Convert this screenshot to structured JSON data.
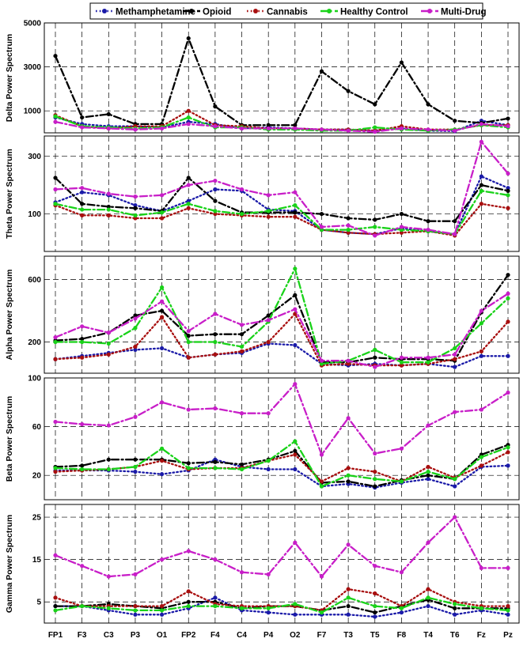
{
  "chart_data": {
    "type": "line",
    "legend": {
      "placement": "top",
      "entries": [
        {
          "name": "Methamphetamine",
          "color": "#1a1aa8",
          "dash": "dotted"
        },
        {
          "name": "Opioid",
          "color": "#000000",
          "dash": "dash-dot"
        },
        {
          "name": "Cannabis",
          "color": "#a80f0f",
          "dash": "dotted"
        },
        {
          "name": "Healthy Control",
          "color": "#19d219",
          "dash": "dash-dot"
        },
        {
          "name": "Multi-Drug",
          "color": "#c81ec8",
          "dash": "dash-dot"
        }
      ]
    },
    "categories": [
      "FP1",
      "F3",
      "C3",
      "P3",
      "O1",
      "FP2",
      "F4",
      "C4",
      "P4",
      "O2",
      "F7",
      "T3",
      "T5",
      "F8",
      "T4",
      "T6",
      "Fz",
      "Pz"
    ],
    "panels": [
      {
        "ylabel": "Delta Power Spectrum",
        "ylim": [
          0,
          5000
        ],
        "yticks": [
          1000,
          3000,
          5000
        ],
        "grid": true,
        "series": [
          {
            "name": "Methamphetamine",
            "values": [
              700,
              400,
              300,
              300,
              250,
              500,
              400,
              200,
              250,
              200,
              150,
              150,
              100,
              200,
              100,
              80,
              550,
              350
            ]
          },
          {
            "name": "Opioid",
            "values": [
              3500,
              700,
              850,
              400,
              400,
              4300,
              1200,
              350,
              350,
              350,
              2800,
              1900,
              1300,
              3200,
              1300,
              550,
              450,
              650
            ]
          },
          {
            "name": "Cannabis",
            "values": [
              800,
              300,
              200,
              300,
              300,
              1000,
              350,
              300,
              200,
              200,
              150,
              150,
              100,
              300,
              150,
              150,
              350,
              350
            ]
          },
          {
            "name": "Healthy Control",
            "values": [
              750,
              300,
              250,
              200,
              250,
              700,
              250,
              250,
              150,
              150,
              100,
              100,
              250,
              150,
              100,
              150,
              350,
              250
            ]
          },
          {
            "name": "Multi-Drug",
            "values": [
              500,
              250,
              200,
              150,
              200,
              400,
              300,
              200,
              200,
              200,
              150,
              100,
              50,
              200,
              150,
              100,
              400,
              300
            ]
          }
        ]
      },
      {
        "ylabel": "Theta Power Spectrum",
        "ylim": [
          -30,
          370
        ],
        "yticks": [
          100,
          300
        ],
        "grid": true,
        "series": [
          {
            "name": "Methamphetamine",
            "values": [
              140,
              175,
              165,
              130,
              110,
              145,
              185,
              180,
              115,
              110,
              45,
              35,
              30,
              50,
              40,
              30,
              230,
              190
            ]
          },
          {
            "name": "Opioid",
            "values": [
              225,
              135,
              125,
              120,
              110,
              225,
              145,
              105,
              105,
              105,
              100,
              85,
              80,
              100,
              75,
              75,
              200,
              180
            ]
          },
          {
            "name": "Cannabis",
            "values": [
              130,
              95,
              95,
              85,
              85,
              120,
              100,
              95,
              90,
              90,
              45,
              35,
              30,
              35,
              40,
              25,
              135,
              120
            ]
          },
          {
            "name": "Healthy Control",
            "values": [
              135,
              115,
              115,
              95,
              105,
              135,
              110,
              100,
              110,
              130,
              45,
              45,
              55,
              45,
              40,
              30,
              180,
              165
            ]
          },
          {
            "name": "Multi-Drug",
            "values": [
              185,
              190,
              170,
              160,
              165,
              200,
              215,
              185,
              165,
              175,
              55,
              60,
              25,
              55,
              45,
              30,
              350,
              240
            ]
          }
        ]
      },
      {
        "ylabel": "Alpha Power Spectrum",
        "ylim": [
          0,
          750
        ],
        "yticks": [
          200,
          600
        ],
        "grid": true,
        "series": [
          {
            "name": "Methamphetamine",
            "values": [
              90,
              110,
              130,
              150,
              160,
              100,
              120,
              130,
              190,
              180,
              60,
              50,
              60,
              50,
              60,
              40,
              110,
              110
            ]
          },
          {
            "name": "Opioid",
            "values": [
              210,
              220,
              260,
              370,
              400,
              240,
              250,
              250,
              370,
              500,
              70,
              70,
              100,
              90,
              90,
              80,
              390,
              630
            ]
          },
          {
            "name": "Cannabis",
            "values": [
              90,
              100,
              120,
              170,
              360,
              100,
              120,
              140,
              200,
              380,
              50,
              60,
              50,
              50,
              60,
              90,
              140,
              330
            ]
          },
          {
            "name": "Healthy Control",
            "values": [
              200,
              200,
              190,
              290,
              550,
              200,
              200,
              170,
              330,
              670,
              60,
              80,
              150,
              70,
              70,
              160,
              320,
              480
            ]
          },
          {
            "name": "Multi-Drug",
            "values": [
              230,
              300,
              260,
              350,
              460,
              270,
              380,
              310,
              340,
              410,
              80,
              80,
              40,
              100,
              100,
              120,
              400,
              510
            ]
          }
        ]
      },
      {
        "ylabel": "Beta Power Spectrum",
        "ylim": [
          0,
          100
        ],
        "yticks": [
          20,
          60,
          100
        ],
        "grid": true,
        "series": [
          {
            "name": "Methamphetamine",
            "values": [
              24,
              24,
              24,
              23,
              21,
              24,
              33,
              27,
              25,
              25,
              11,
              13,
              10,
              14,
              17,
              11,
              27,
              28
            ]
          },
          {
            "name": "Opioid",
            "values": [
              27,
              28,
              33,
              33,
              33,
              30,
              31,
              29,
              33,
              40,
              14,
              15,
              11,
              16,
              20,
              17,
              37,
              45
            ]
          },
          {
            "name": "Cannabis",
            "values": [
              23,
              24,
              25,
              27,
              32,
              25,
              26,
              26,
              32,
              37,
              15,
              26,
              23,
              15,
              27,
              18,
              28,
              39
            ]
          },
          {
            "name": "Healthy Control",
            "values": [
              26,
              25,
              25,
              27,
              42,
              26,
              26,
              25,
              32,
              48,
              11,
              20,
              17,
              15,
              23,
              17,
              35,
              43
            ]
          },
          {
            "name": "Multi-Drug",
            "values": [
              64,
              62,
              61,
              68,
              80,
              74,
              75,
              71,
              71,
              95,
              37,
              67,
              38,
              42,
              61,
              72,
              74,
              88
            ]
          }
        ]
      },
      {
        "ylabel": "Gamma Power Spectrum",
        "ylim": [
          0,
          28
        ],
        "yticks": [
          5,
          15,
          25
        ],
        "grid": true,
        "series": [
          {
            "name": "Methamphetamine",
            "values": [
              4,
              4,
              3,
              2,
              2,
              3.5,
              6,
              3,
              2.5,
              2,
              2,
              2,
              1.5,
              2.5,
              4,
              2,
              3,
              2
            ]
          },
          {
            "name": "Opioid",
            "values": [
              4,
              4,
              4.5,
              4,
              3.5,
              5,
              5,
              3.5,
              4,
              4,
              3,
              4,
              2.5,
              4,
              5.5,
              3.5,
              3.5,
              3.5
            ]
          },
          {
            "name": "Cannabis",
            "values": [
              6,
              4,
              4,
              4,
              4,
              7.5,
              4.5,
              4,
              4,
              4,
              3,
              8,
              7,
              4,
              8,
              5,
              4,
              4
            ]
          },
          {
            "name": "Healthy Control",
            "values": [
              3,
              4,
              3.5,
              3,
              3,
              4,
              4,
              3.5,
              3.5,
              4.5,
              2.5,
              6,
              4,
              3.5,
              6,
              4.5,
              3.5,
              3
            ]
          },
          {
            "name": "Multi-Drug",
            "values": [
              16,
              13.5,
              11,
              11.5,
              15,
              17,
              15,
              12,
              11.5,
              19,
              11,
              18.5,
              13.5,
              12,
              19,
              25,
              13,
              13
            ]
          }
        ]
      }
    ]
  }
}
